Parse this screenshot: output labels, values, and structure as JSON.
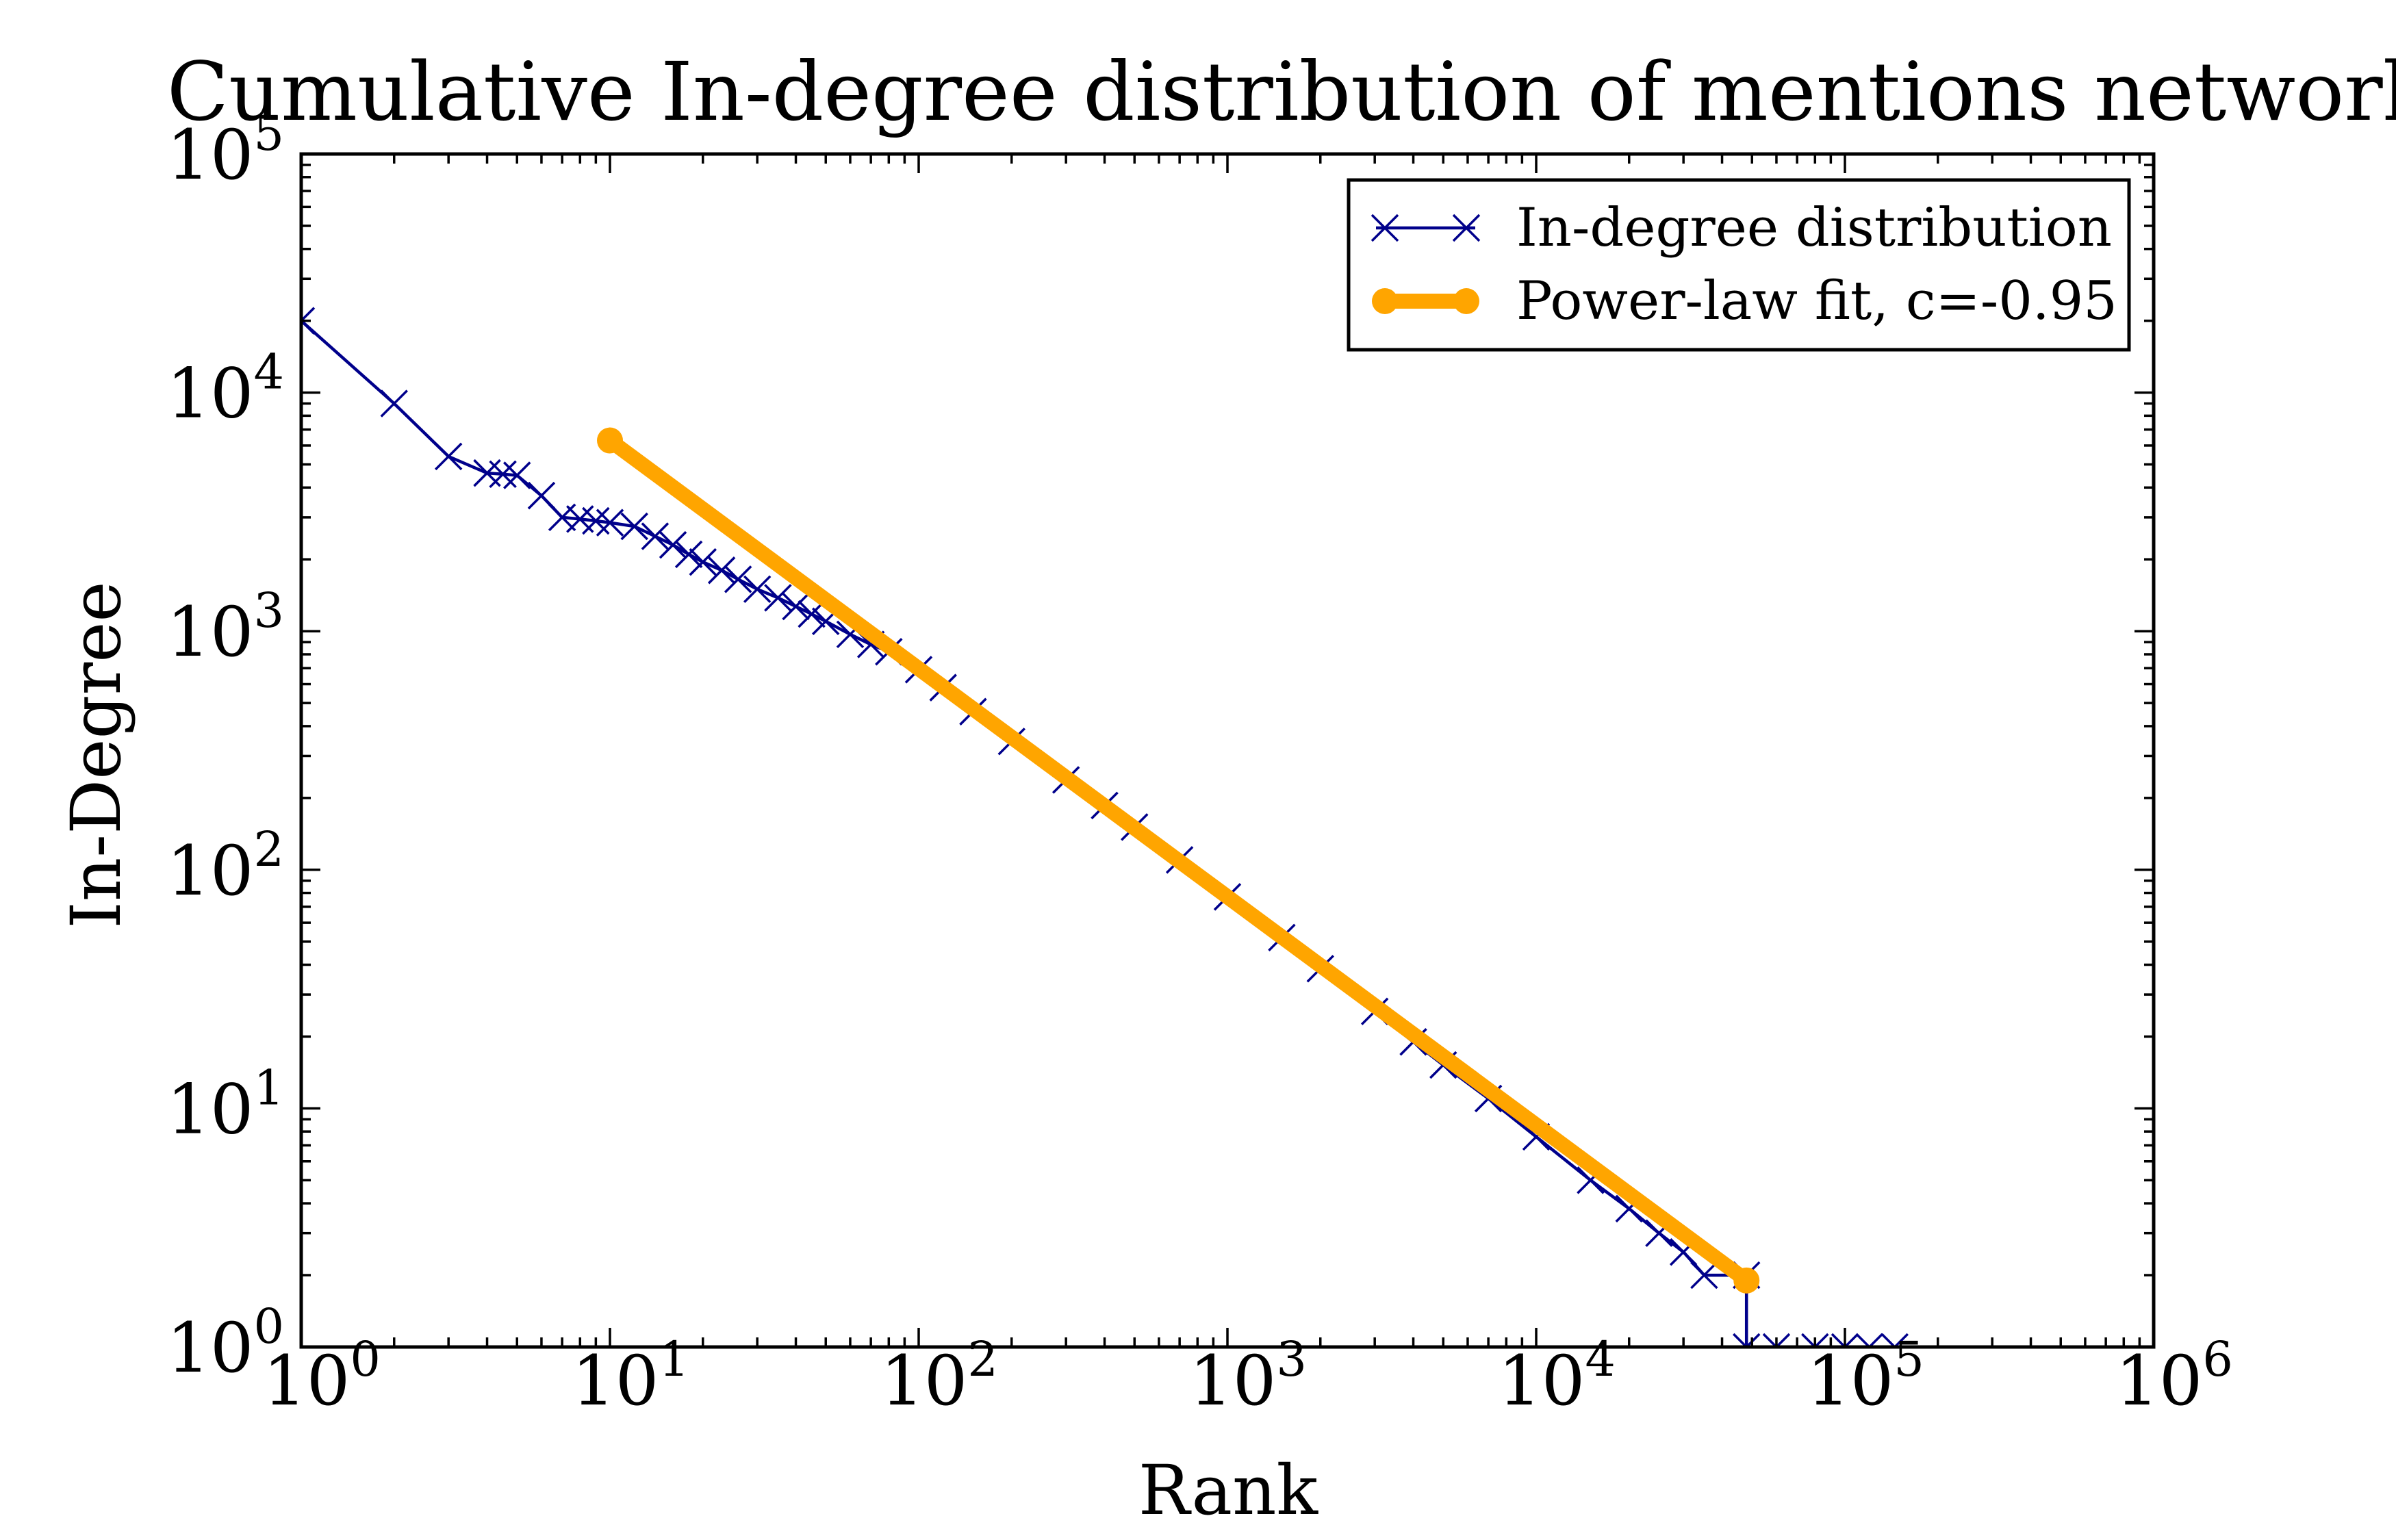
{
  "chart_data": {
    "type": "line",
    "title": "Cumulative In-degree distribution of mentions network",
    "xlabel": "Rank",
    "ylabel": "In-Degree",
    "xscale": "log",
    "yscale": "log",
    "xlim": [
      1,
      1000000
    ],
    "ylim": [
      1,
      100000
    ],
    "grid": false,
    "legend_position": "top-right",
    "x_ticks": [
      {
        "value": 1,
        "base": "10",
        "exp": "0"
      },
      {
        "value": 10,
        "base": "10",
        "exp": "1"
      },
      {
        "value": 100,
        "base": "10",
        "exp": "2"
      },
      {
        "value": 1000,
        "base": "10",
        "exp": "3"
      },
      {
        "value": 10000,
        "base": "10",
        "exp": "4"
      },
      {
        "value": 100000,
        "base": "10",
        "exp": "5"
      },
      {
        "value": 1000000,
        "base": "10",
        "exp": "6"
      }
    ],
    "y_ticks": [
      {
        "value": 1,
        "base": "10",
        "exp": "0"
      },
      {
        "value": 10,
        "base": "10",
        "exp": "1"
      },
      {
        "value": 100,
        "base": "10",
        "exp": "2"
      },
      {
        "value": 1000,
        "base": "10",
        "exp": "3"
      },
      {
        "value": 10000,
        "base": "10",
        "exp": "4"
      },
      {
        "value": 100000,
        "base": "10",
        "exp": "5"
      }
    ],
    "series": [
      {
        "name": "In-degree distribution",
        "color": "#00008b",
        "marker": "x",
        "points": [
          [
            1,
            20000
          ],
          [
            2,
            9000
          ],
          [
            3,
            5400
          ],
          [
            4,
            4600
          ],
          [
            4.5,
            4550
          ],
          [
            5,
            4500
          ],
          [
            6,
            3700
          ],
          [
            7,
            3000
          ],
          [
            8,
            2950
          ],
          [
            9,
            2900
          ],
          [
            10,
            2850
          ],
          [
            12,
            2750
          ],
          [
            14,
            2500
          ],
          [
            16,
            2300
          ],
          [
            18,
            2100
          ],
          [
            20,
            1950
          ],
          [
            23,
            1800
          ],
          [
            26,
            1650
          ],
          [
            30,
            1500
          ],
          [
            35,
            1380
          ],
          [
            40,
            1270
          ],
          [
            45,
            1180
          ],
          [
            50,
            1100
          ],
          [
            60,
            970
          ],
          [
            70,
            880
          ],
          [
            80,
            820
          ],
          [
            100,
            690
          ],
          [
            120,
            580
          ],
          [
            150,
            460
          ],
          [
            200,
            345
          ],
          [
            300,
            238
          ],
          [
            400,
            186
          ],
          [
            500,
            151
          ],
          [
            700,
            110
          ],
          [
            1000,
            77
          ],
          [
            1500,
            52
          ],
          [
            2000,
            38.5
          ],
          [
            3000,
            25.5
          ],
          [
            4000,
            19
          ],
          [
            5000,
            15.2
          ],
          [
            7000,
            11
          ],
          [
            10000,
            7.6
          ],
          [
            15000,
            5
          ],
          [
            20000,
            3.8
          ],
          [
            25000,
            3
          ],
          [
            30000,
            2.5
          ],
          [
            35000,
            2
          ],
          [
            48000,
            2
          ],
          [
            48000,
            1
          ],
          [
            60000,
            1
          ],
          [
            80000,
            1
          ],
          [
            100000,
            1
          ],
          [
            120000,
            1
          ],
          [
            145000,
            1
          ]
        ]
      },
      {
        "name": "Power-law fit, c=-0.95",
        "color": "#ffa500",
        "marker": "o",
        "points": [
          [
            10,
            6300
          ],
          [
            48000,
            1.9
          ]
        ]
      }
    ]
  }
}
